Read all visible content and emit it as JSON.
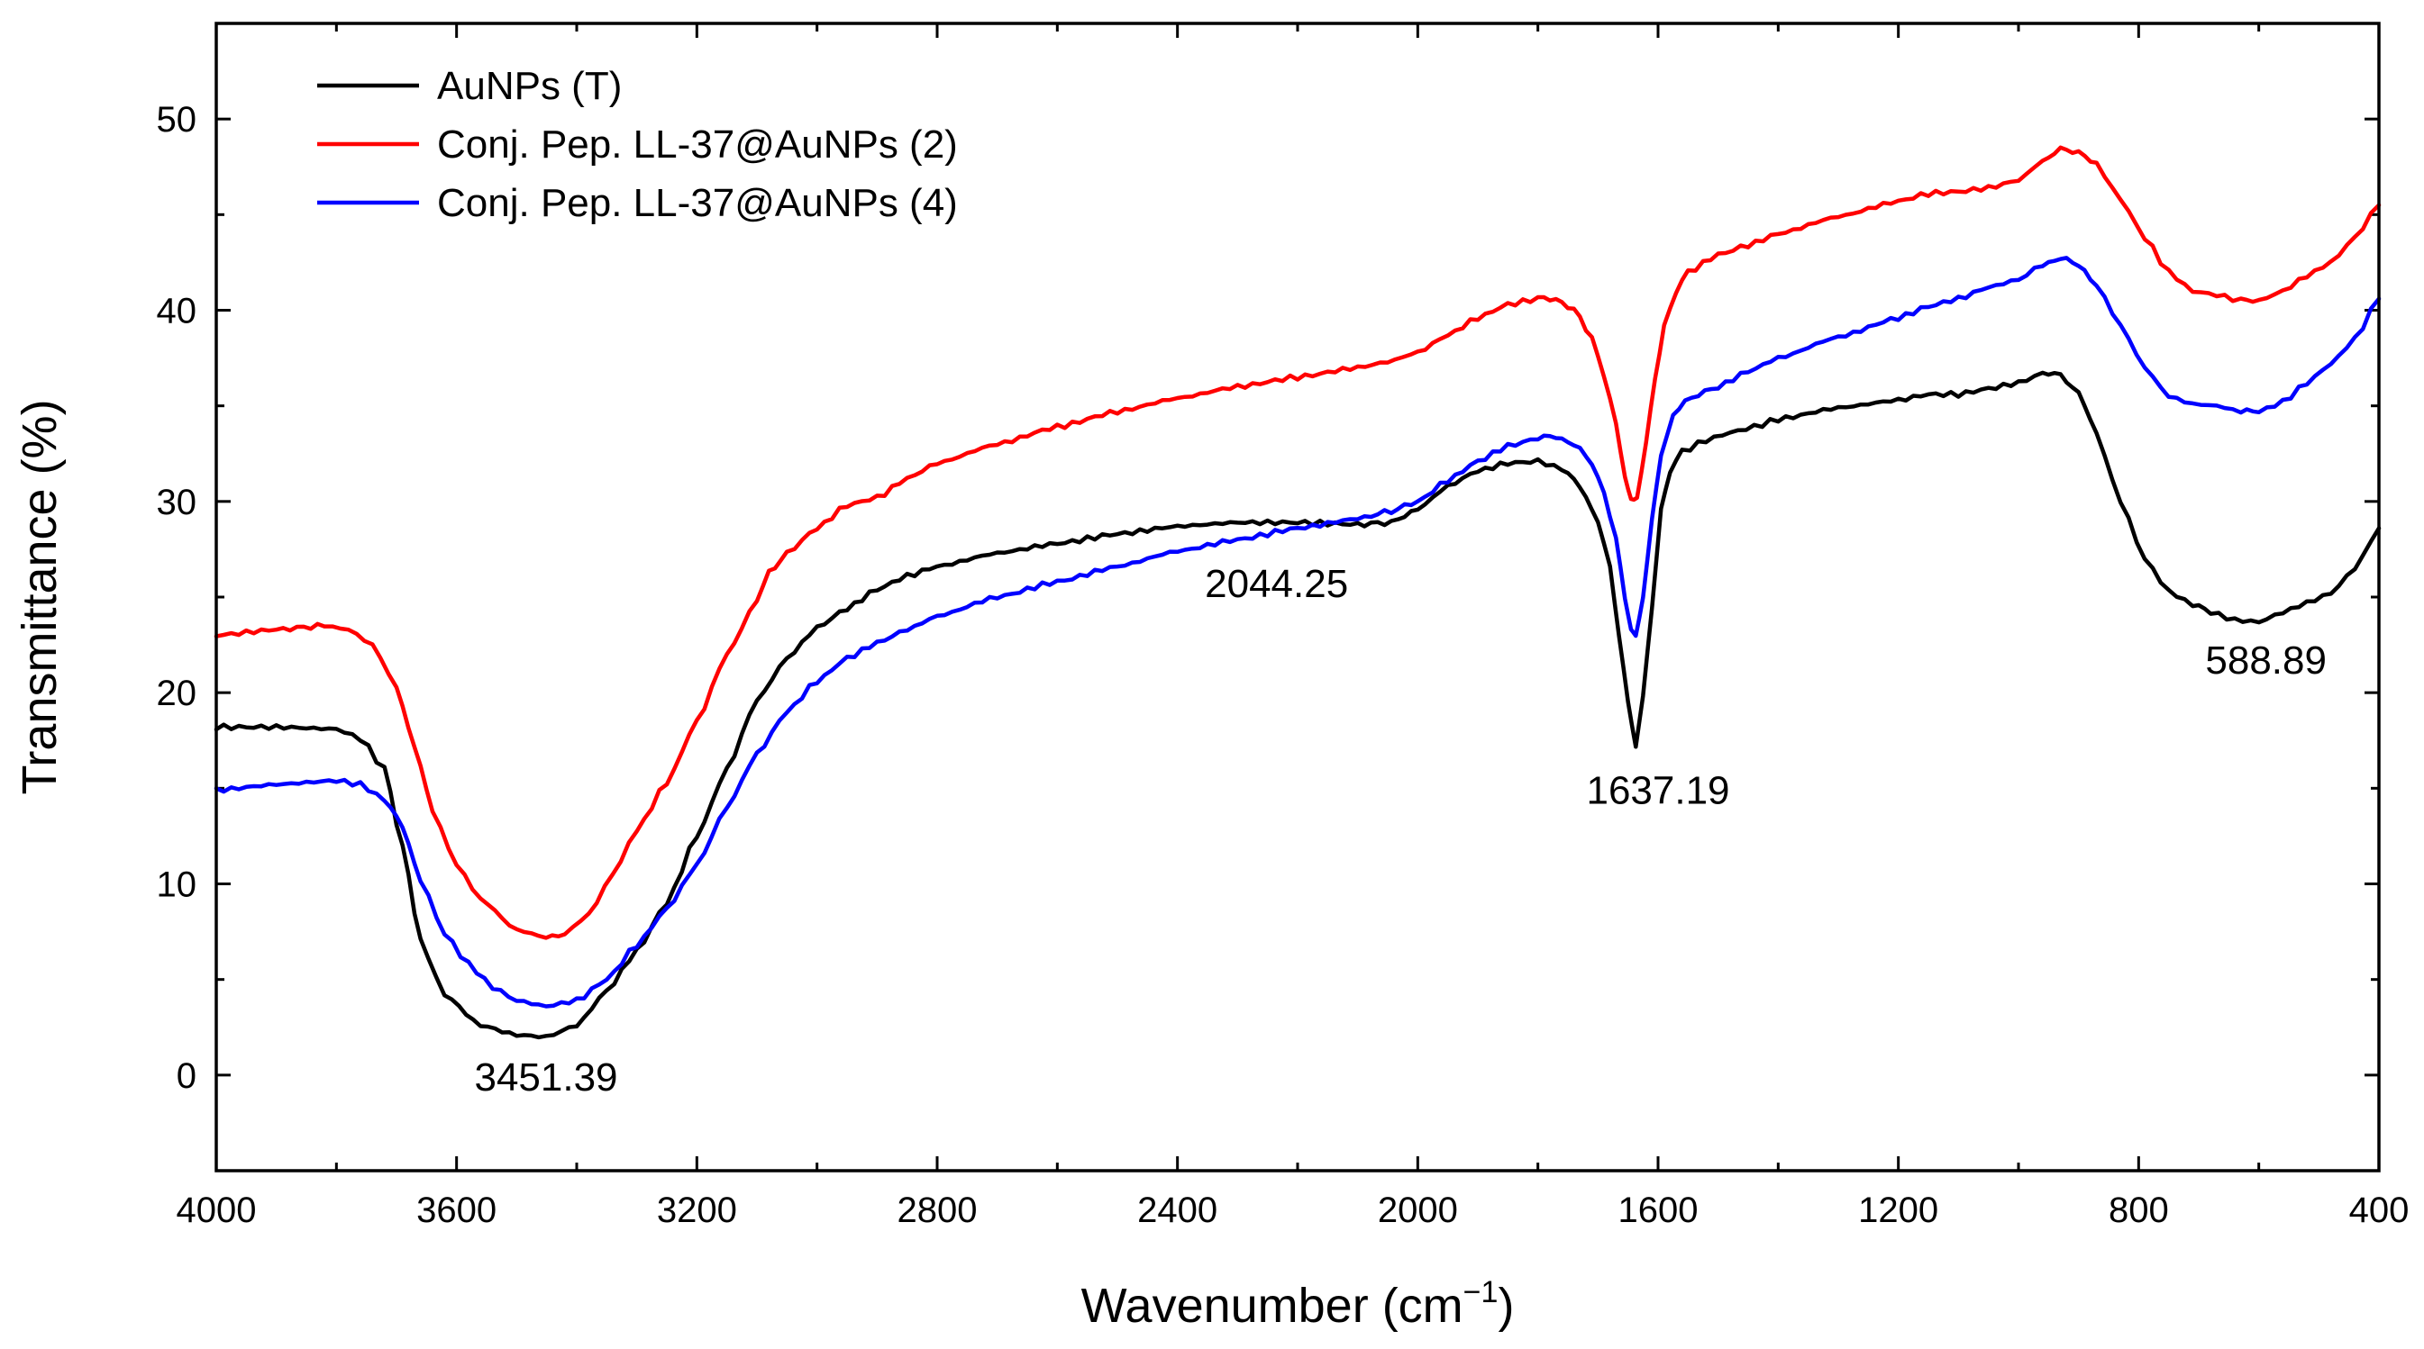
{
  "chart_data": {
    "type": "line",
    "title": "",
    "xlabel": "Wavenumber (cm",
    "xlabel_sup": "−1",
    "xlabel_end": ")",
    "ylabel": "Transmittance (%)",
    "xlim": [
      4000,
      400
    ],
    "ylim": [
      -5,
      55
    ],
    "x_ticks": [
      4000,
      3600,
      3200,
      2800,
      2400,
      2000,
      1600,
      1200,
      800,
      400
    ],
    "y_ticks": [
      0,
      10,
      20,
      30,
      40,
      50
    ],
    "legend_position": "top-left",
    "series": [
      {
        "name": "AuNPs (T)",
        "color": "#000000",
        "points": [
          [
            4000,
            18.2
          ],
          [
            3900,
            18.2
          ],
          [
            3800,
            18.1
          ],
          [
            3760,
            17.6
          ],
          [
            3720,
            16.0
          ],
          [
            3690,
            12.0
          ],
          [
            3660,
            7.0
          ],
          [
            3620,
            4.2
          ],
          [
            3560,
            2.6
          ],
          [
            3500,
            2.1
          ],
          [
            3451,
            2.0
          ],
          [
            3400,
            2.6
          ],
          [
            3350,
            4.4
          ],
          [
            3300,
            6.5
          ],
          [
            3250,
            9.0
          ],
          [
            3200,
            12.5
          ],
          [
            3150,
            16.0
          ],
          [
            3100,
            19.6
          ],
          [
            3050,
            21.8
          ],
          [
            3000,
            23.4
          ],
          [
            2950,
            24.4
          ],
          [
            2900,
            25.4
          ],
          [
            2850,
            26.1
          ],
          [
            2800,
            26.6
          ],
          [
            2700,
            27.3
          ],
          [
            2600,
            27.8
          ],
          [
            2500,
            28.3
          ],
          [
            2400,
            28.7
          ],
          [
            2300,
            28.9
          ],
          [
            2200,
            28.9
          ],
          [
            2100,
            28.8
          ],
          [
            2044,
            28.9
          ],
          [
            2000,
            29.6
          ],
          [
            1950,
            30.8
          ],
          [
            1900,
            31.6
          ],
          [
            1850,
            32.0
          ],
          [
            1800,
            32.1
          ],
          [
            1760,
            31.7
          ],
          [
            1730,
            30.8
          ],
          [
            1700,
            29.0
          ],
          [
            1680,
            26.5
          ],
          [
            1665,
            23.0
          ],
          [
            1650,
            19.5
          ],
          [
            1637,
            17.2
          ],
          [
            1625,
            19.8
          ],
          [
            1610,
            24.5
          ],
          [
            1595,
            29.5
          ],
          [
            1580,
            31.6
          ],
          [
            1560,
            32.6
          ],
          [
            1520,
            33.2
          ],
          [
            1480,
            33.6
          ],
          [
            1440,
            33.9
          ],
          [
            1400,
            34.3
          ],
          [
            1300,
            34.9
          ],
          [
            1200,
            35.3
          ],
          [
            1150,
            35.6
          ],
          [
            1100,
            35.6
          ],
          [
            1050,
            35.9
          ],
          [
            1000,
            36.2
          ],
          [
            960,
            36.7
          ],
          [
            930,
            36.6
          ],
          [
            900,
            35.7
          ],
          [
            870,
            33.5
          ],
          [
            830,
            30.0
          ],
          [
            790,
            27.0
          ],
          [
            750,
            25.3
          ],
          [
            710,
            24.6
          ],
          [
            680,
            24.2
          ],
          [
            640,
            23.8
          ],
          [
            600,
            23.7
          ],
          [
            560,
            24.2
          ],
          [
            520,
            24.7
          ],
          [
            480,
            25.2
          ],
          [
            440,
            26.5
          ],
          [
            400,
            28.6
          ]
        ]
      },
      {
        "name": "Conj. Pep. LL-37@AuNPs (2)",
        "color": "#ff0000",
        "points": [
          [
            4000,
            23.0
          ],
          [
            3900,
            23.3
          ],
          [
            3820,
            23.5
          ],
          [
            3780,
            23.3
          ],
          [
            3740,
            22.5
          ],
          [
            3700,
            20.3
          ],
          [
            3670,
            17.2
          ],
          [
            3640,
            13.8
          ],
          [
            3600,
            11.0
          ],
          [
            3560,
            9.2
          ],
          [
            3500,
            7.6
          ],
          [
            3451,
            7.2
          ],
          [
            3420,
            7.4
          ],
          [
            3380,
            8.4
          ],
          [
            3340,
            10.5
          ],
          [
            3300,
            12.8
          ],
          [
            3250,
            15.3
          ],
          [
            3200,
            18.5
          ],
          [
            3150,
            22.0
          ],
          [
            3100,
            24.8
          ],
          [
            3080,
            26.3
          ],
          [
            3050,
            27.3
          ],
          [
            3000,
            28.6
          ],
          [
            2950,
            29.8
          ],
          [
            2900,
            30.2
          ],
          [
            2850,
            31.2
          ],
          [
            2800,
            32.0
          ],
          [
            2700,
            33.0
          ],
          [
            2600,
            33.9
          ],
          [
            2500,
            34.7
          ],
          [
            2400,
            35.4
          ],
          [
            2300,
            36.0
          ],
          [
            2200,
            36.5
          ],
          [
            2100,
            37.0
          ],
          [
            2050,
            37.3
          ],
          [
            2000,
            37.8
          ],
          [
            1950,
            38.7
          ],
          [
            1900,
            39.6
          ],
          [
            1850,
            40.3
          ],
          [
            1800,
            40.6
          ],
          [
            1770,
            40.6
          ],
          [
            1740,
            40.0
          ],
          [
            1710,
            38.6
          ],
          [
            1690,
            36.6
          ],
          [
            1670,
            34.0
          ],
          [
            1655,
            31.3
          ],
          [
            1645,
            30.0
          ],
          [
            1635,
            30.2
          ],
          [
            1620,
            33.0
          ],
          [
            1605,
            36.5
          ],
          [
            1590,
            39.2
          ],
          [
            1570,
            41.0
          ],
          [
            1550,
            42.0
          ],
          [
            1500,
            42.9
          ],
          [
            1450,
            43.4
          ],
          [
            1400,
            44.0
          ],
          [
            1300,
            44.9
          ],
          [
            1200,
            45.7
          ],
          [
            1150,
            46.1
          ],
          [
            1100,
            46.2
          ],
          [
            1050,
            46.4
          ],
          [
            1000,
            46.8
          ],
          [
            960,
            47.8
          ],
          [
            930,
            48.4
          ],
          [
            900,
            48.3
          ],
          [
            870,
            47.6
          ],
          [
            830,
            45.8
          ],
          [
            790,
            43.8
          ],
          [
            750,
            42.0
          ],
          [
            710,
            41.0
          ],
          [
            670,
            40.8
          ],
          [
            630,
            40.5
          ],
          [
            600,
            40.5
          ],
          [
            560,
            41.0
          ],
          [
            520,
            41.8
          ],
          [
            480,
            42.5
          ],
          [
            440,
            43.8
          ],
          [
            400,
            45.5
          ]
        ]
      },
      {
        "name": "Conj. Pep. LL-37@AuNPs (4)",
        "color": "#0000ff",
        "points": [
          [
            4000,
            14.9
          ],
          [
            3900,
            15.2
          ],
          [
            3800,
            15.4
          ],
          [
            3760,
            15.2
          ],
          [
            3720,
            14.4
          ],
          [
            3690,
            13.0
          ],
          [
            3660,
            10.2
          ],
          [
            3620,
            7.4
          ],
          [
            3580,
            5.8
          ],
          [
            3540,
            4.6
          ],
          [
            3500,
            3.9
          ],
          [
            3451,
            3.6
          ],
          [
            3400,
            3.9
          ],
          [
            3350,
            5.0
          ],
          [
            3300,
            6.8
          ],
          [
            3250,
            8.7
          ],
          [
            3200,
            11.0
          ],
          [
            3150,
            14.0
          ],
          [
            3100,
            16.8
          ],
          [
            3050,
            19.0
          ],
          [
            3000,
            20.6
          ],
          [
            2950,
            21.8
          ],
          [
            2900,
            22.6
          ],
          [
            2850,
            23.3
          ],
          [
            2800,
            24.0
          ],
          [
            2700,
            25.0
          ],
          [
            2600,
            25.8
          ],
          [
            2500,
            26.6
          ],
          [
            2400,
            27.4
          ],
          [
            2300,
            28.0
          ],
          [
            2200,
            28.6
          ],
          [
            2100,
            29.1
          ],
          [
            2044,
            29.5
          ],
          [
            2000,
            30.0
          ],
          [
            1950,
            31.1
          ],
          [
            1900,
            32.1
          ],
          [
            1850,
            32.9
          ],
          [
            1800,
            33.3
          ],
          [
            1770,
            33.4
          ],
          [
            1740,
            33.0
          ],
          [
            1710,
            32.0
          ],
          [
            1690,
            30.5
          ],
          [
            1670,
            28.0
          ],
          [
            1655,
            25.0
          ],
          [
            1645,
            23.3
          ],
          [
            1637,
            22.9
          ],
          [
            1625,
            25.0
          ],
          [
            1610,
            29.0
          ],
          [
            1595,
            32.5
          ],
          [
            1575,
            34.4
          ],
          [
            1555,
            35.3
          ],
          [
            1500,
            36.0
          ],
          [
            1450,
            36.8
          ],
          [
            1400,
            37.5
          ],
          [
            1300,
            38.6
          ],
          [
            1200,
            39.6
          ],
          [
            1150,
            40.2
          ],
          [
            1100,
            40.6
          ],
          [
            1050,
            41.2
          ],
          [
            1000,
            41.6
          ],
          [
            960,
            42.4
          ],
          [
            930,
            42.7
          ],
          [
            900,
            42.4
          ],
          [
            870,
            41.3
          ],
          [
            830,
            39.2
          ],
          [
            790,
            37.0
          ],
          [
            750,
            35.5
          ],
          [
            710,
            35.1
          ],
          [
            670,
            35.0
          ],
          [
            630,
            34.7
          ],
          [
            600,
            34.7
          ],
          [
            560,
            35.2
          ],
          [
            520,
            36.2
          ],
          [
            480,
            37.2
          ],
          [
            440,
            38.5
          ],
          [
            400,
            40.6
          ]
        ]
      }
    ],
    "annotations": [
      {
        "text": "3451.39",
        "x": 3451,
        "y": -0.8
      },
      {
        "text": "2044.25",
        "x": 2235,
        "y": 25.0
      },
      {
        "text": "1637.19",
        "x": 1600,
        "y": 14.2
      },
      {
        "text": "588.89",
        "x": 588,
        "y": 21.0
      }
    ]
  }
}
